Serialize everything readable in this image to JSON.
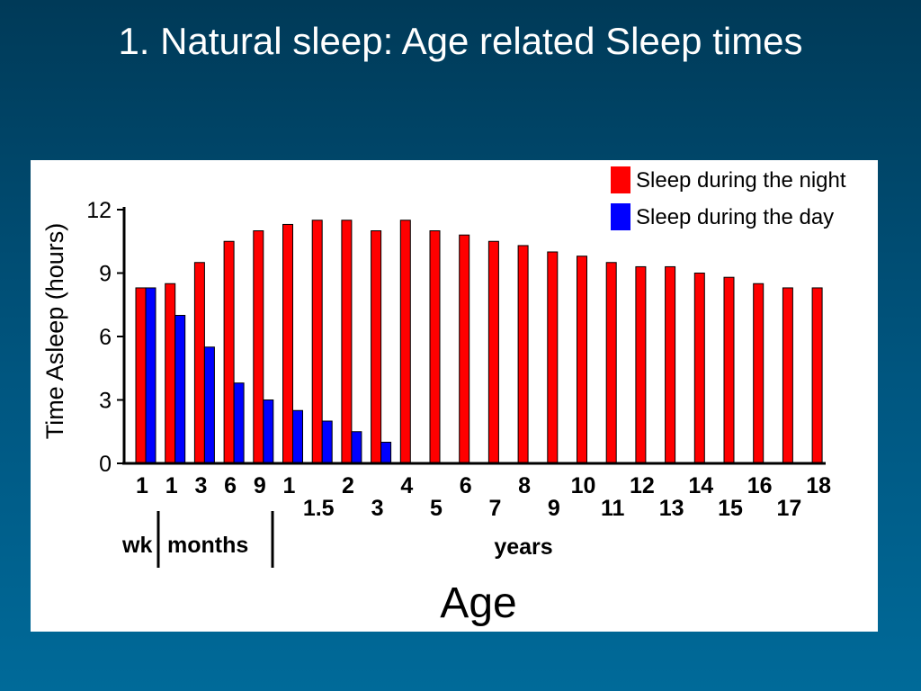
{
  "slide": {
    "title": "1. Natural sleep: Age related Sleep times"
  },
  "colors": {
    "night": "#ff0000",
    "day": "#0000ff",
    "bar_outline": "#000000",
    "background_top": "#003a58",
    "background_bottom": "#006a99"
  },
  "chart_data": {
    "type": "bar",
    "ylabel": "Time Asleep (hours)",
    "xlabel": "Age",
    "ylim": [
      0,
      12
    ],
    "yticks": [
      0,
      3,
      6,
      9,
      12
    ],
    "grid": false,
    "legend_position": "top-right",
    "categories": [
      "1",
      "1",
      "3",
      "6",
      "9",
      "1",
      "1.5",
      "2",
      "3",
      "4",
      "5",
      "6",
      "7",
      "8",
      "9",
      "10",
      "11",
      "12",
      "13",
      "14",
      "15",
      "16",
      "17",
      "18"
    ],
    "series": [
      {
        "name": "Sleep during the night",
        "values": [
          8.3,
          8.5,
          9.5,
          10.5,
          11.0,
          11.3,
          11.5,
          11.5,
          11.0,
          11.5,
          11.0,
          10.8,
          10.5,
          10.3,
          10.0,
          9.8,
          9.5,
          9.3,
          9.3,
          9.0,
          8.8,
          8.5,
          8.3,
          8.3
        ]
      },
      {
        "name": "Sleep during the day",
        "values": [
          8.3,
          7.0,
          5.5,
          3.8,
          3.0,
          2.5,
          2.0,
          1.5,
          1.0,
          null,
          null,
          null,
          null,
          null,
          null,
          null,
          null,
          null,
          null,
          null,
          null,
          null,
          null,
          null
        ]
      }
    ],
    "age_groups": [
      {
        "label": "wk"
      },
      {
        "label": "months"
      },
      {
        "label": "years"
      }
    ]
  }
}
